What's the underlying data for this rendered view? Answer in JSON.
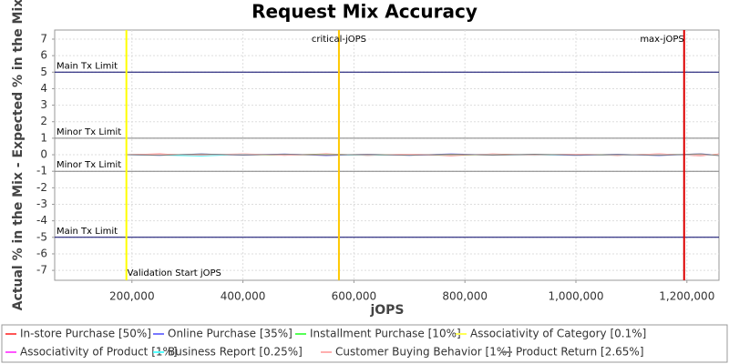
{
  "chart_data": {
    "type": "line",
    "title": "Request Mix Accuracy",
    "x_label": "jOPS",
    "y_label": "Actual % in the Mix - Expected % in the Mix",
    "xlim": [
      60800,
      1257800
    ],
    "ylim": [
      -7.6,
      7.55
    ],
    "xticks": [
      {
        "value": 200000,
        "label": "200,000"
      },
      {
        "value": 400000,
        "label": "400,000"
      },
      {
        "value": 600000,
        "label": "600,000"
      },
      {
        "value": 800000,
        "label": "800,000"
      },
      {
        "value": 1000000,
        "label": "1,000,000"
      },
      {
        "value": 1200000,
        "label": "1,200,000"
      }
    ],
    "yticks": [
      -7,
      -6,
      -5,
      -4,
      -3,
      -2,
      -1,
      0,
      1,
      2,
      3,
      4,
      5,
      6,
      7
    ],
    "grid": true,
    "thresholds": [
      {
        "label": "Main Tx Limit",
        "value": 5,
        "color": "#000066"
      },
      {
        "label": "Minor Tx Limit",
        "value": 1,
        "color": "#808080"
      },
      {
        "label": "Minor Tx Limit",
        "value": -1,
        "color": "#808080"
      },
      {
        "label": "Main Tx Limit",
        "value": -5,
        "color": "#000066"
      }
    ],
    "markers": [
      {
        "label": "Validation Start jOPS",
        "value": 190000,
        "color": "#ffff00"
      },
      {
        "label": "critical-jOPS",
        "value": 573000,
        "color": "#ffc800"
      },
      {
        "label": "max-jOPS",
        "value": 1195000,
        "color": "#dd0000"
      }
    ],
    "x": [
      190000,
      250000,
      325000,
      400000,
      475000,
      550000,
      625000,
      700000,
      775000,
      850000,
      925000,
      1000000,
      1075000,
      1150000,
      1225000,
      1257800
    ],
    "series": [
      {
        "name": "In-store Purchase [50%]",
        "color": "#ff5555",
        "values": [
          0,
          0.05,
          -0.06,
          0.04,
          -0.03,
          0.05,
          -0.04,
          0.03,
          -0.05,
          0.04,
          -0.02,
          0.03,
          -0.04,
          0.05,
          -0.06,
          0.04
        ]
      },
      {
        "name": "Online Purchase [35%]",
        "color": "#7777ff",
        "values": [
          0,
          -0.04,
          0.05,
          -0.03,
          0.04,
          -0.05,
          0.03,
          -0.04,
          0.05,
          -0.03,
          0.02,
          -0.04,
          0.03,
          -0.05,
          0.06,
          -0.03
        ]
      },
      {
        "name": "Installment Purchase [10%]",
        "color": "#55ff55",
        "values": [
          0,
          0.02,
          -0.03,
          0.02,
          -0.02,
          0.03,
          -0.02,
          0.01,
          -0.02,
          0.02,
          -0.01,
          0.02,
          -0.02,
          0.03,
          -0.02,
          0.02
        ]
      },
      {
        "name": "Associativity of Category [0.1%]",
        "color": "#ffff55",
        "values": [
          0,
          0,
          0.01,
          0,
          -0.01,
          0,
          0.01,
          0,
          0,
          -0.01,
          0,
          0.01,
          0,
          0,
          -0.01,
          0
        ]
      },
      {
        "name": "Associativity of Product [1%]",
        "color": "#ff55ff",
        "values": [
          0,
          0.01,
          -0.02,
          0.01,
          0.02,
          -0.01,
          0.01,
          -0.02,
          0.01,
          0.01,
          -0.01,
          0.02,
          -0.01,
          0.01,
          -0.02,
          0.01
        ]
      },
      {
        "name": "Business Report [0.25%]",
        "color": "#55ffff",
        "values": [
          0,
          -0.02,
          -0.08,
          0.03,
          -0.02,
          0.01,
          -0.03,
          0.02,
          -0.01,
          0.02,
          -0.03,
          0.01,
          -0.02,
          0.02,
          -0.03,
          0.01
        ]
      },
      {
        "name": "Customer Buying Behavior [1%]",
        "color": "#ffafaf",
        "values": [
          0,
          0.03,
          -0.02,
          0.06,
          -0.03,
          0.02,
          -0.02,
          0.03,
          -0.01,
          0.02,
          -0.02,
          0.03,
          -0.02,
          0.04,
          -0.03,
          0.02
        ]
      },
      {
        "name": "Product Return [2.65%]",
        "color": "#808080",
        "values": [
          0,
          -0.03,
          0.04,
          -0.02,
          0.03,
          -0.02,
          0.02,
          -0.03,
          0.03,
          -0.02,
          0.03,
          -0.02,
          0.02,
          -0.03,
          0.05,
          -0.05
        ]
      }
    ]
  }
}
